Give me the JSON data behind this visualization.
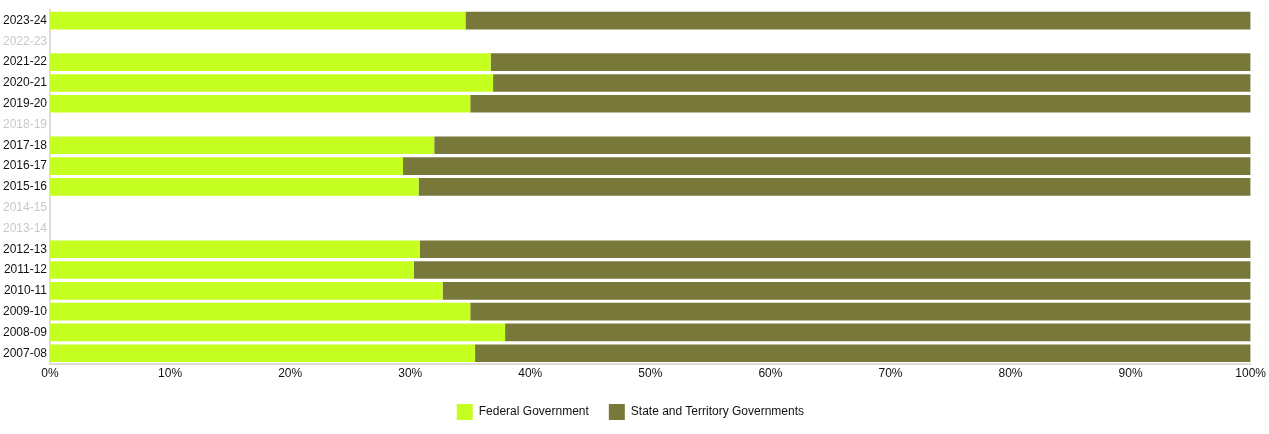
{
  "chart_data": {
    "type": "bar",
    "orientation": "horizontal",
    "stacked": true,
    "categories": [
      "2023-24",
      "2022-23",
      "2021-22",
      "2020-21",
      "2019-20",
      "2018-19",
      "2017-18",
      "2016-17",
      "2015-16",
      "2014-15",
      "2013-14",
      "2012-13",
      "2011-12",
      "2010-11",
      "2009-10",
      "2008-09",
      "2007-08"
    ],
    "series": [
      {
        "name": "Federal Government",
        "color": "#c5ff1f",
        "values": [
          34.6,
          null,
          36.7,
          36.9,
          35.0,
          null,
          32.0,
          29.4,
          30.7,
          null,
          null,
          30.8,
          30.3,
          32.7,
          35.0,
          37.9,
          35.4
        ]
      },
      {
        "name": "State and Territory Governments",
        "color": "#79783b",
        "values": [
          65.4,
          null,
          63.3,
          63.1,
          65.0,
          null,
          68.0,
          70.6,
          69.3,
          null,
          null,
          69.2,
          69.7,
          67.3,
          65.0,
          62.1,
          64.6
        ]
      }
    ],
    "xlim": [
      0,
      100
    ],
    "xticks": [
      {
        "value": 0,
        "label": "0%"
      },
      {
        "value": 10,
        "label": "10%"
      },
      {
        "value": 20,
        "label": "20%"
      },
      {
        "value": 30,
        "label": "30%"
      },
      {
        "value": 40,
        "label": "40%"
      },
      {
        "value": 50,
        "label": "50%"
      },
      {
        "value": 60,
        "label": "60%"
      },
      {
        "value": 70,
        "label": "70%"
      },
      {
        "value": 80,
        "label": "80%"
      },
      {
        "value": 90,
        "label": "90%"
      },
      {
        "value": 100,
        "label": "100%"
      }
    ],
    "grid": false,
    "legend": "bottom"
  }
}
